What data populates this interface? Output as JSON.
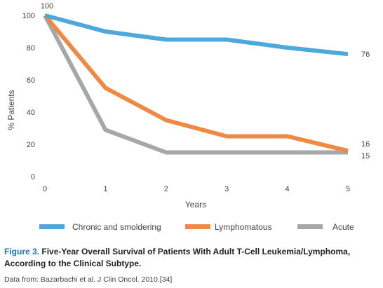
{
  "chart_data": {
    "type": "line",
    "x": [
      0,
      1,
      2,
      3,
      4,
      5
    ],
    "xlabel": "Years",
    "ylabel": "% Patients",
    "xlim": [
      0,
      5
    ],
    "ylim": [
      0,
      100
    ],
    "xticks": [
      "0",
      "1",
      "2",
      "3",
      "4",
      "5"
    ],
    "yticks": [
      "0",
      "20",
      "40",
      "60",
      "80",
      "100"
    ],
    "grid": false,
    "legend_position": "bottom",
    "series": [
      {
        "name": "Chronic and smoldering",
        "values": [
          100,
          90,
          85,
          85,
          80,
          76
        ],
        "color": "#4fa8dc",
        "end_label": "76"
      },
      {
        "name": "Lymphomatous",
        "values": [
          100,
          55,
          35,
          25,
          25,
          16
        ],
        "color": "#ef8a45",
        "end_label": "16"
      },
      {
        "name": "Acute",
        "values": [
          100,
          29,
          15,
          15,
          15,
          15
        ],
        "color": "#a5a7a9",
        "end_label": "15"
      }
    ],
    "annotations": [
      {
        "label": "100",
        "x": 0,
        "y": 100
      }
    ]
  },
  "caption": {
    "figure_number": "Figure 3.",
    "title": "Five-Year Overall Survival of Patients With Adult T-Cell Leukemia/Lymphoma, According to the Clinical Subtype.",
    "source": "Data from: Bazarbachi et al. J Clin Oncol. 2010.[34]"
  }
}
